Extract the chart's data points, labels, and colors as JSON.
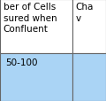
{
  "col1_header_lines": [
    "ber of Cells",
    "sured when",
    "Confluent"
  ],
  "col2_header_lines": [
    "Cha",
    "v"
  ],
  "col1_value": "50-100",
  "col2_value": "",
  "header_bg": "#ffffff",
  "value_bg": "#aad4f5",
  "border_color": "#666666",
  "header_fontsize": 7.5,
  "value_fontsize": 7.5,
  "col_split": 0.68,
  "row_split": 0.47,
  "fig_width": 1.2,
  "fig_height": 1.15,
  "dpi": 100
}
